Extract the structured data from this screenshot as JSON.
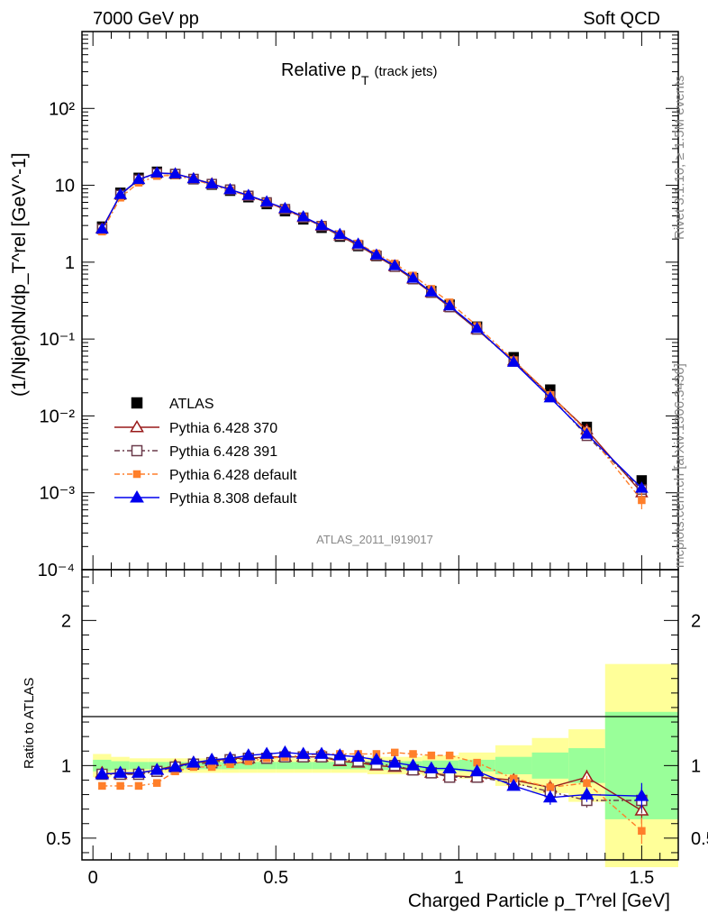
{
  "header": {
    "left": "7000 GeV pp",
    "right": "Soft QCD",
    "plot_title_main": "Relative p",
    "plot_title_sub": "T",
    "plot_title_extra": "(track jets)",
    "analysis_id": "ATLAS_2011_I919017",
    "side_rivet": "Rivet 3.1.10, ≥ 1.5M events",
    "side_mcplots": "mcplots.cern.ch [arXiv:1306.3436]"
  },
  "chart_data": [
    {
      "type": "scatter",
      "panel": "main",
      "yscale": "log",
      "ylim": [
        0.0001,
        1000
      ],
      "xlim": [
        -0.03,
        1.6
      ],
      "ylabel": "(1/Njet)dN/dp_T^rel [GeV^-1]",
      "y_tick_labels": [
        "10⁻⁴",
        "10⁻³",
        "10⁻²",
        "10⁻¹",
        "1",
        "10",
        "10²"
      ],
      "legend_position": "lower-left",
      "x": [
        0.025,
        0.075,
        0.125,
        0.175,
        0.225,
        0.275,
        0.325,
        0.375,
        0.425,
        0.475,
        0.525,
        0.575,
        0.625,
        0.675,
        0.725,
        0.775,
        0.825,
        0.875,
        0.925,
        0.975,
        1.05,
        1.15,
        1.25,
        1.35,
        1.5
      ],
      "series": [
        {
          "name": "ATLAS",
          "color": "#000000",
          "marker": "square-filled",
          "values": [
            2.9,
            8.0,
            12.5,
            15.0,
            14.0,
            12.0,
            10.2,
            8.5,
            7.0,
            5.7,
            4.6,
            3.6,
            2.8,
            2.15,
            1.62,
            1.2,
            0.88,
            0.62,
            0.42,
            0.28,
            0.145,
            0.058,
            0.022,
            0.0072,
            0.00145
          ]
        },
        {
          "name": "Pythia 6.428 370",
          "color": "#991a1a",
          "marker": "triangle-open",
          "values": [
            2.75,
            7.5,
            11.9,
            14.5,
            14.1,
            12.2,
            10.5,
            8.8,
            7.3,
            6.0,
            4.85,
            3.8,
            2.95,
            2.2,
            1.65,
            1.2,
            0.87,
            0.6,
            0.4,
            0.26,
            0.133,
            0.052,
            0.0186,
            0.0066,
            0.001
          ]
        },
        {
          "name": "Pythia 6.428 391",
          "color": "#6b3a4a",
          "marker": "square-open",
          "values": [
            2.7,
            7.5,
            11.8,
            14.3,
            14.0,
            12.1,
            10.4,
            8.8,
            7.3,
            6.0,
            4.9,
            3.8,
            2.95,
            2.22,
            1.66,
            1.21,
            0.87,
            0.6,
            0.4,
            0.26,
            0.133,
            0.051,
            0.018,
            0.0055,
            0.0011
          ]
        },
        {
          "name": "Pythia 6.428 default",
          "color": "#ff7f2a",
          "marker": "square-filled",
          "values": [
            2.5,
            6.9,
            10.8,
            13.2,
            13.5,
            11.9,
            10.1,
            8.6,
            7.2,
            6.0,
            4.9,
            3.85,
            3.0,
            2.3,
            1.75,
            1.3,
            0.96,
            0.67,
            0.45,
            0.3,
            0.148,
            0.053,
            0.0187,
            0.0063,
            0.0008
          ]
        },
        {
          "name": "Pythia 8.308 default",
          "color": "#0000ee",
          "marker": "triangle-filled",
          "values": [
            2.7,
            7.6,
            11.9,
            14.5,
            14.1,
            12.2,
            10.4,
            8.8,
            7.4,
            6.1,
            5.0,
            3.9,
            3.0,
            2.3,
            1.72,
            1.24,
            0.9,
            0.62,
            0.41,
            0.27,
            0.138,
            0.05,
            0.0172,
            0.0058,
            0.00115
          ]
        }
      ]
    },
    {
      "type": "line",
      "panel": "ratio",
      "ylim": [
        0.35,
        2.35
      ],
      "xlim": [
        -0.03,
        1.6
      ],
      "ylabel": "Ratio to ATLAS",
      "xlabel": "Charged Particle p_T^rel [GeV]",
      "x_tick_labels": [
        "0",
        "0.5",
        "1",
        "1.5"
      ],
      "y_tick_labels": [
        "0.5",
        "1",
        "2"
      ],
      "bins": [
        [
          0.0,
          0.05
        ],
        [
          0.05,
          0.1
        ],
        [
          0.1,
          0.15
        ],
        [
          0.15,
          0.2
        ],
        [
          0.2,
          0.25
        ],
        [
          0.25,
          0.3
        ],
        [
          0.3,
          0.35
        ],
        [
          0.35,
          0.4
        ],
        [
          0.4,
          0.45
        ],
        [
          0.45,
          0.5
        ],
        [
          0.5,
          0.55
        ],
        [
          0.55,
          0.6
        ],
        [
          0.6,
          0.65
        ],
        [
          0.65,
          0.7
        ],
        [
          0.7,
          0.75
        ],
        [
          0.75,
          0.8
        ],
        [
          0.8,
          0.85
        ],
        [
          0.85,
          0.9
        ],
        [
          0.9,
          0.95
        ],
        [
          0.95,
          1.0
        ],
        [
          1.0,
          1.1
        ],
        [
          1.1,
          1.2
        ],
        [
          1.2,
          1.3
        ],
        [
          1.3,
          1.4
        ],
        [
          1.4,
          1.6
        ]
      ],
      "band_stat": [
        0.04,
        0.03,
        0.025,
        0.025,
        0.025,
        0.025,
        0.025,
        0.025,
        0.025,
        0.025,
        0.025,
        0.025,
        0.025,
        0.025,
        0.025,
        0.03,
        0.03,
        0.03,
        0.035,
        0.035,
        0.04,
        0.06,
        0.09,
        0.12,
        0.37
      ],
      "band_total": [
        0.08,
        0.06,
        0.05,
        0.05,
        0.05,
        0.05,
        0.05,
        0.05,
        0.05,
        0.05,
        0.05,
        0.05,
        0.05,
        0.05,
        0.05,
        0.06,
        0.06,
        0.06,
        0.07,
        0.07,
        0.09,
        0.14,
        0.19,
        0.25,
        0.7
      ],
      "x": [
        0.025,
        0.075,
        0.125,
        0.175,
        0.225,
        0.275,
        0.325,
        0.375,
        0.425,
        0.475,
        0.525,
        0.575,
        0.625,
        0.675,
        0.725,
        0.775,
        0.825,
        0.875,
        0.925,
        0.975,
        1.05,
        1.15,
        1.25,
        1.35,
        1.5
      ],
      "series": [
        {
          "name": "Pythia 6.428 370",
          "color": "#991a1a",
          "marker": "triangle-open",
          "dash": "",
          "values": [
            0.95,
            0.94,
            0.95,
            0.97,
            1.0,
            1.02,
            1.03,
            1.05,
            1.05,
            1.06,
            1.06,
            1.06,
            1.06,
            1.03,
            1.02,
            1.0,
            0.99,
            0.97,
            0.95,
            0.93,
            0.92,
            0.9,
            0.85,
            0.92,
            0.69
          ]
        },
        {
          "name": "Pythia 6.428 391",
          "color": "#6b3a4a",
          "marker": "square-open",
          "dash": "6,3,2,3",
          "values": [
            0.94,
            0.94,
            0.94,
            0.96,
            0.99,
            1.01,
            1.02,
            1.04,
            1.05,
            1.05,
            1.06,
            1.06,
            1.06,
            1.04,
            1.03,
            1.01,
            1.0,
            0.97,
            0.95,
            0.92,
            0.92,
            0.88,
            0.82,
            0.76,
            0.76
          ]
        },
        {
          "name": "Pythia 6.428 default",
          "color": "#ff7f2a",
          "marker": "square-filled",
          "dash": "6,3,2,3",
          "values": [
            0.86,
            0.86,
            0.86,
            0.88,
            0.96,
            0.99,
            0.99,
            1.01,
            1.03,
            1.05,
            1.06,
            1.07,
            1.08,
            1.08,
            1.08,
            1.08,
            1.09,
            1.08,
            1.07,
            1.07,
            1.02,
            0.91,
            0.85,
            0.88,
            0.55
          ]
        },
        {
          "name": "Pythia 8.308 default",
          "color": "#0000ee",
          "marker": "triangle-filled",
          "dash": "",
          "values": [
            0.94,
            0.95,
            0.95,
            0.97,
            0.99,
            1.02,
            1.04,
            1.05,
            1.07,
            1.08,
            1.09,
            1.08,
            1.08,
            1.07,
            1.06,
            1.04,
            1.02,
            1.0,
            0.98,
            0.98,
            0.96,
            0.86,
            0.78,
            0.8,
            0.79
          ]
        }
      ]
    }
  ]
}
